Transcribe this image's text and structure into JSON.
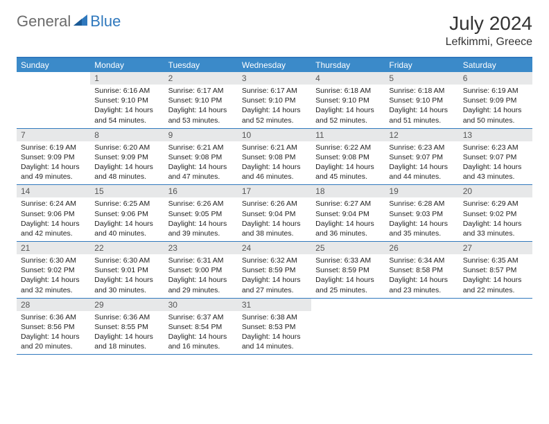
{
  "logo": {
    "text_general": "General",
    "text_blue": "Blue"
  },
  "title": "July 2024",
  "location": "Lefkimmi, Greece",
  "colors": {
    "header_bg": "#3b8ac9",
    "header_text": "#ffffff",
    "border": "#2f78bd",
    "daynum_bg": "#e7e8e9",
    "daynum_text": "#555555",
    "body_text": "#222222",
    "logo_gray": "#6b6b6b",
    "logo_blue": "#2f78bd"
  },
  "day_headers": [
    "Sunday",
    "Monday",
    "Tuesday",
    "Wednesday",
    "Thursday",
    "Friday",
    "Saturday"
  ],
  "weeks": [
    [
      {
        "num": "",
        "lines": []
      },
      {
        "num": "1",
        "lines": [
          "Sunrise: 6:16 AM",
          "Sunset: 9:10 PM",
          "Daylight: 14 hours",
          "and 54 minutes."
        ]
      },
      {
        "num": "2",
        "lines": [
          "Sunrise: 6:17 AM",
          "Sunset: 9:10 PM",
          "Daylight: 14 hours",
          "and 53 minutes."
        ]
      },
      {
        "num": "3",
        "lines": [
          "Sunrise: 6:17 AM",
          "Sunset: 9:10 PM",
          "Daylight: 14 hours",
          "and 52 minutes."
        ]
      },
      {
        "num": "4",
        "lines": [
          "Sunrise: 6:18 AM",
          "Sunset: 9:10 PM",
          "Daylight: 14 hours",
          "and 52 minutes."
        ]
      },
      {
        "num": "5",
        "lines": [
          "Sunrise: 6:18 AM",
          "Sunset: 9:10 PM",
          "Daylight: 14 hours",
          "and 51 minutes."
        ]
      },
      {
        "num": "6",
        "lines": [
          "Sunrise: 6:19 AM",
          "Sunset: 9:09 PM",
          "Daylight: 14 hours",
          "and 50 minutes."
        ]
      }
    ],
    [
      {
        "num": "7",
        "lines": [
          "Sunrise: 6:19 AM",
          "Sunset: 9:09 PM",
          "Daylight: 14 hours",
          "and 49 minutes."
        ]
      },
      {
        "num": "8",
        "lines": [
          "Sunrise: 6:20 AM",
          "Sunset: 9:09 PM",
          "Daylight: 14 hours",
          "and 48 minutes."
        ]
      },
      {
        "num": "9",
        "lines": [
          "Sunrise: 6:21 AM",
          "Sunset: 9:08 PM",
          "Daylight: 14 hours",
          "and 47 minutes."
        ]
      },
      {
        "num": "10",
        "lines": [
          "Sunrise: 6:21 AM",
          "Sunset: 9:08 PM",
          "Daylight: 14 hours",
          "and 46 minutes."
        ]
      },
      {
        "num": "11",
        "lines": [
          "Sunrise: 6:22 AM",
          "Sunset: 9:08 PM",
          "Daylight: 14 hours",
          "and 45 minutes."
        ]
      },
      {
        "num": "12",
        "lines": [
          "Sunrise: 6:23 AM",
          "Sunset: 9:07 PM",
          "Daylight: 14 hours",
          "and 44 minutes."
        ]
      },
      {
        "num": "13",
        "lines": [
          "Sunrise: 6:23 AM",
          "Sunset: 9:07 PM",
          "Daylight: 14 hours",
          "and 43 minutes."
        ]
      }
    ],
    [
      {
        "num": "14",
        "lines": [
          "Sunrise: 6:24 AM",
          "Sunset: 9:06 PM",
          "Daylight: 14 hours",
          "and 42 minutes."
        ]
      },
      {
        "num": "15",
        "lines": [
          "Sunrise: 6:25 AM",
          "Sunset: 9:06 PM",
          "Daylight: 14 hours",
          "and 40 minutes."
        ]
      },
      {
        "num": "16",
        "lines": [
          "Sunrise: 6:26 AM",
          "Sunset: 9:05 PM",
          "Daylight: 14 hours",
          "and 39 minutes."
        ]
      },
      {
        "num": "17",
        "lines": [
          "Sunrise: 6:26 AM",
          "Sunset: 9:04 PM",
          "Daylight: 14 hours",
          "and 38 minutes."
        ]
      },
      {
        "num": "18",
        "lines": [
          "Sunrise: 6:27 AM",
          "Sunset: 9:04 PM",
          "Daylight: 14 hours",
          "and 36 minutes."
        ]
      },
      {
        "num": "19",
        "lines": [
          "Sunrise: 6:28 AM",
          "Sunset: 9:03 PM",
          "Daylight: 14 hours",
          "and 35 minutes."
        ]
      },
      {
        "num": "20",
        "lines": [
          "Sunrise: 6:29 AM",
          "Sunset: 9:02 PM",
          "Daylight: 14 hours",
          "and 33 minutes."
        ]
      }
    ],
    [
      {
        "num": "21",
        "lines": [
          "Sunrise: 6:30 AM",
          "Sunset: 9:02 PM",
          "Daylight: 14 hours",
          "and 32 minutes."
        ]
      },
      {
        "num": "22",
        "lines": [
          "Sunrise: 6:30 AM",
          "Sunset: 9:01 PM",
          "Daylight: 14 hours",
          "and 30 minutes."
        ]
      },
      {
        "num": "23",
        "lines": [
          "Sunrise: 6:31 AM",
          "Sunset: 9:00 PM",
          "Daylight: 14 hours",
          "and 29 minutes."
        ]
      },
      {
        "num": "24",
        "lines": [
          "Sunrise: 6:32 AM",
          "Sunset: 8:59 PM",
          "Daylight: 14 hours",
          "and 27 minutes."
        ]
      },
      {
        "num": "25",
        "lines": [
          "Sunrise: 6:33 AM",
          "Sunset: 8:59 PM",
          "Daylight: 14 hours",
          "and 25 minutes."
        ]
      },
      {
        "num": "26",
        "lines": [
          "Sunrise: 6:34 AM",
          "Sunset: 8:58 PM",
          "Daylight: 14 hours",
          "and 23 minutes."
        ]
      },
      {
        "num": "27",
        "lines": [
          "Sunrise: 6:35 AM",
          "Sunset: 8:57 PM",
          "Daylight: 14 hours",
          "and 22 minutes."
        ]
      }
    ],
    [
      {
        "num": "28",
        "lines": [
          "Sunrise: 6:36 AM",
          "Sunset: 8:56 PM",
          "Daylight: 14 hours",
          "and 20 minutes."
        ]
      },
      {
        "num": "29",
        "lines": [
          "Sunrise: 6:36 AM",
          "Sunset: 8:55 PM",
          "Daylight: 14 hours",
          "and 18 minutes."
        ]
      },
      {
        "num": "30",
        "lines": [
          "Sunrise: 6:37 AM",
          "Sunset: 8:54 PM",
          "Daylight: 14 hours",
          "and 16 minutes."
        ]
      },
      {
        "num": "31",
        "lines": [
          "Sunrise: 6:38 AM",
          "Sunset: 8:53 PM",
          "Daylight: 14 hours",
          "and 14 minutes."
        ]
      },
      {
        "num": "",
        "lines": []
      },
      {
        "num": "",
        "lines": []
      },
      {
        "num": "",
        "lines": []
      }
    ]
  ]
}
